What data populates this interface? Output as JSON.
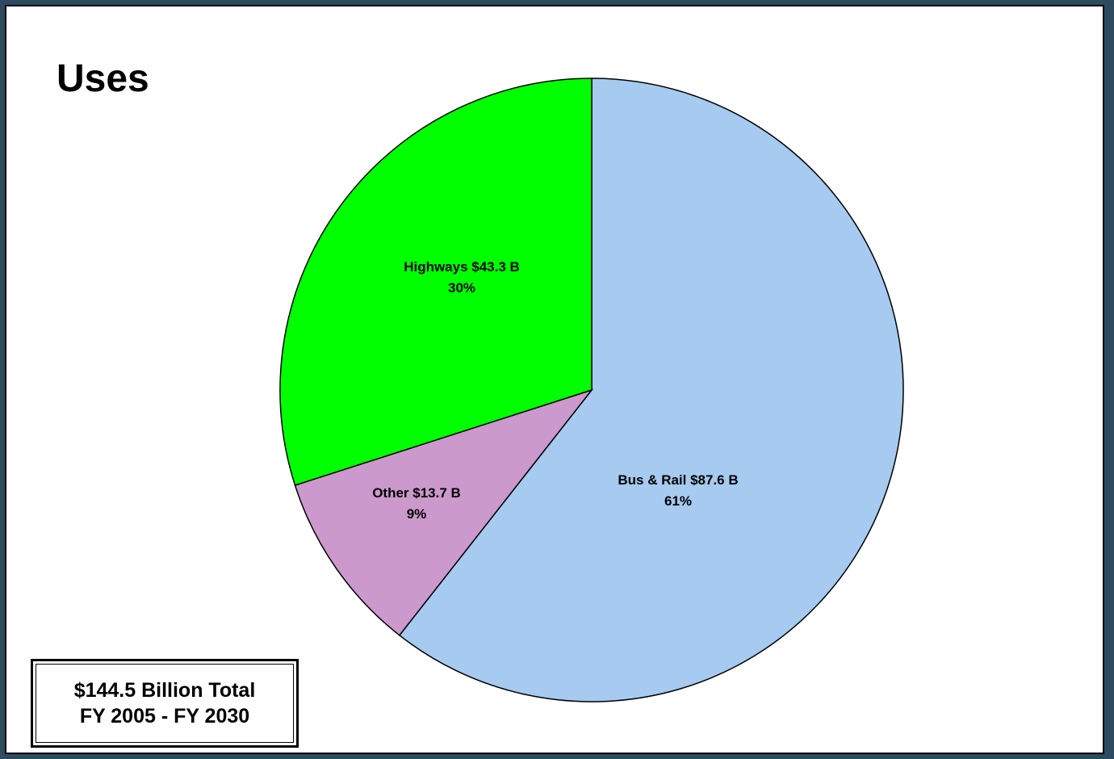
{
  "title": "Uses",
  "summary_box": {
    "line1": "$144.5 Billion Total",
    "line2": "FY 2005 - FY 2030"
  },
  "chart_data": {
    "type": "pie",
    "title": "Uses",
    "total": 144.5,
    "start_angle_deg": 90,
    "direction": "clockwise",
    "slices": [
      {
        "label": "Bus & Rail",
        "amount": 87.6,
        "amount_text": "$87.6 B",
        "percent": 61,
        "percent_text": "61%",
        "color": "#a6caf0"
      },
      {
        "label": "Other",
        "amount": 13.7,
        "amount_text": "$13.7 B",
        "percent": 9,
        "percent_text": "9%",
        "color": "#cc99cc"
      },
      {
        "label": "Highways",
        "amount": 43.3,
        "amount_text": "$43.3 B",
        "percent": 30,
        "percent_text": "30%",
        "color": "#00ff00"
      }
    ]
  },
  "colors": {
    "background_frame": "#2c4a60",
    "chart_area": "#ffffff",
    "outline": "#000000"
  }
}
